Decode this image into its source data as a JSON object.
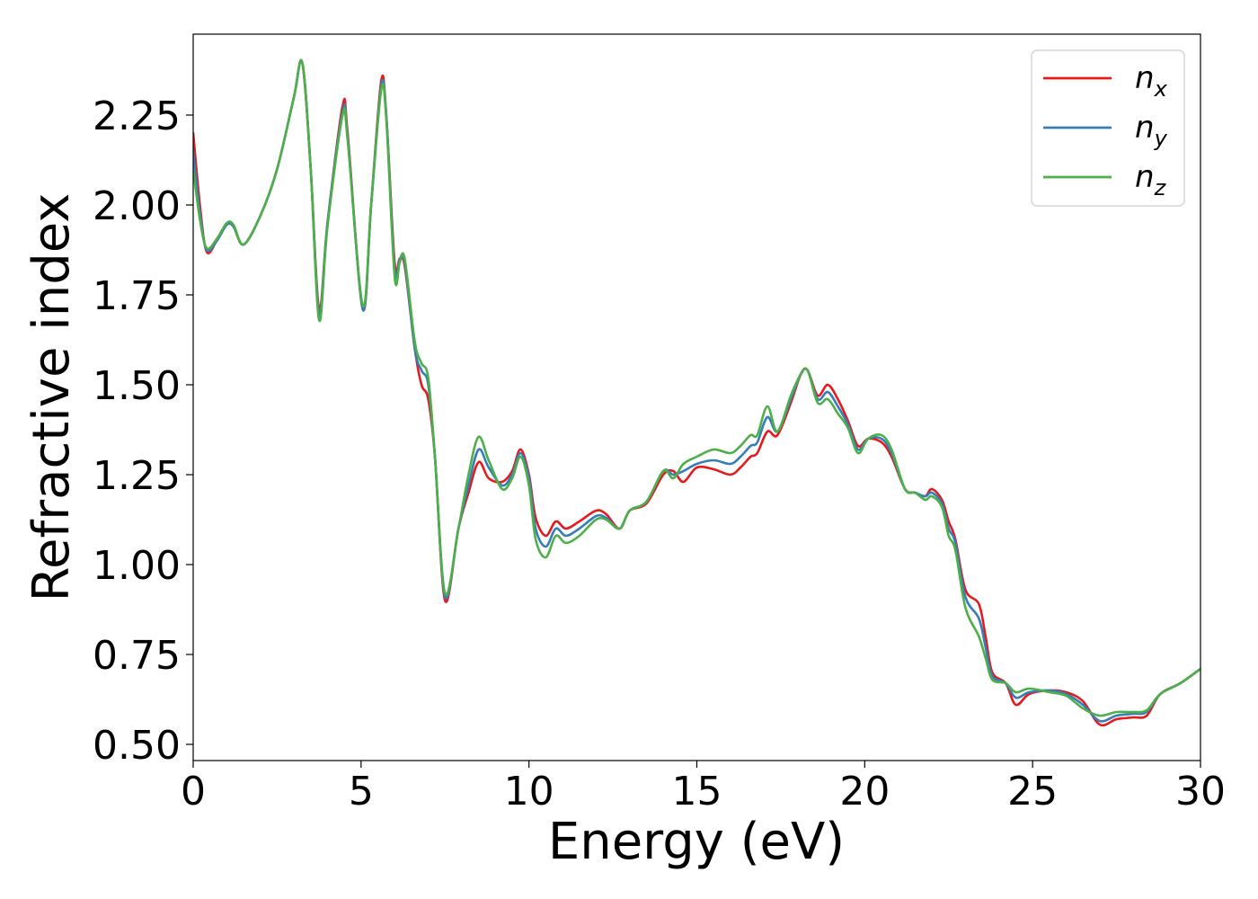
{
  "chart_data": {
    "type": "line",
    "xlabel": "Energy (eV)",
    "ylabel": "Refractive index",
    "xlim": [
      0,
      30
    ],
    "ylim": [
      0.455,
      2.475
    ],
    "xticks": [
      0,
      5,
      10,
      15,
      20,
      25,
      30
    ],
    "xtick_labels": [
      "0",
      "5",
      "10",
      "15",
      "20",
      "25",
      "30"
    ],
    "yticks": [
      0.5,
      0.75,
      1.0,
      1.25,
      1.5,
      1.75,
      2.0,
      2.25
    ],
    "ytick_labels": [
      "0.50",
      "0.75",
      "1.00",
      "1.25",
      "1.50",
      "1.75",
      "2.00",
      "2.25"
    ],
    "grid": false,
    "legend_position": "top-right",
    "series": [
      {
        "name_base": "n",
        "name_sub": "x",
        "color": "#e41a1c",
        "points": [
          [
            0,
            2.2
          ],
          [
            0.2,
            2.0
          ],
          [
            0.4,
            1.87
          ],
          [
            0.7,
            1.9
          ],
          [
            1.0,
            1.945
          ],
          [
            1.2,
            1.94
          ],
          [
            1.5,
            1.89
          ],
          [
            2.0,
            1.97
          ],
          [
            2.5,
            2.1
          ],
          [
            3.0,
            2.3
          ],
          [
            3.25,
            2.395
          ],
          [
            3.5,
            2.1
          ],
          [
            3.75,
            1.71
          ],
          [
            4.0,
            1.95
          ],
          [
            4.45,
            2.275
          ],
          [
            4.6,
            2.2
          ],
          [
            5.05,
            1.71
          ],
          [
            5.3,
            2.0
          ],
          [
            5.6,
            2.345
          ],
          [
            5.75,
            2.25
          ],
          [
            6.0,
            1.84
          ],
          [
            6.15,
            1.85
          ],
          [
            6.3,
            1.83
          ],
          [
            6.6,
            1.6
          ],
          [
            6.8,
            1.5
          ],
          [
            7.0,
            1.46
          ],
          [
            7.2,
            1.3
          ],
          [
            7.5,
            0.9
          ],
          [
            7.9,
            1.1
          ],
          [
            8.2,
            1.2
          ],
          [
            8.5,
            1.285
          ],
          [
            8.8,
            1.24
          ],
          [
            9.2,
            1.23
          ],
          [
            9.5,
            1.26
          ],
          [
            9.75,
            1.32
          ],
          [
            10.0,
            1.25
          ],
          [
            10.2,
            1.13
          ],
          [
            10.5,
            1.08
          ],
          [
            10.8,
            1.12
          ],
          [
            11.1,
            1.1
          ],
          [
            11.5,
            1.12
          ],
          [
            12.0,
            1.15
          ],
          [
            12.3,
            1.14
          ],
          [
            12.7,
            1.1
          ],
          [
            13.0,
            1.15
          ],
          [
            13.5,
            1.17
          ],
          [
            14.0,
            1.25
          ],
          [
            14.3,
            1.26
          ],
          [
            14.6,
            1.23
          ],
          [
            15.0,
            1.27
          ],
          [
            15.5,
            1.265
          ],
          [
            16.0,
            1.25
          ],
          [
            16.3,
            1.27
          ],
          [
            16.6,
            1.3
          ],
          [
            16.8,
            1.31
          ],
          [
            17.1,
            1.37
          ],
          [
            17.4,
            1.36
          ],
          [
            17.8,
            1.45
          ],
          [
            18.1,
            1.53
          ],
          [
            18.3,
            1.54
          ],
          [
            18.6,
            1.47
          ],
          [
            18.9,
            1.5
          ],
          [
            19.2,
            1.46
          ],
          [
            19.5,
            1.4
          ],
          [
            19.8,
            1.33
          ],
          [
            20.1,
            1.35
          ],
          [
            20.5,
            1.34
          ],
          [
            20.8,
            1.3
          ],
          [
            21.2,
            1.21
          ],
          [
            21.5,
            1.2
          ],
          [
            21.8,
            1.19
          ],
          [
            22.0,
            1.21
          ],
          [
            22.3,
            1.18
          ],
          [
            22.5,
            1.12
          ],
          [
            22.7,
            1.07
          ],
          [
            23.0,
            0.93
          ],
          [
            23.4,
            0.89
          ],
          [
            23.6,
            0.8
          ],
          [
            23.8,
            0.7
          ],
          [
            24.2,
            0.67
          ],
          [
            24.5,
            0.61
          ],
          [
            24.9,
            0.64
          ],
          [
            25.5,
            0.65
          ],
          [
            26.0,
            0.645
          ],
          [
            26.5,
            0.62
          ],
          [
            27.0,
            0.555
          ],
          [
            27.5,
            0.57
          ],
          [
            28.0,
            0.575
          ],
          [
            28.4,
            0.58
          ],
          [
            28.8,
            0.64
          ],
          [
            29.4,
            0.67
          ],
          [
            30.0,
            0.71
          ]
        ]
      },
      {
        "name_base": "n",
        "name_sub": "y",
        "color": "#377eb8",
        "points": [
          [
            0,
            2.15
          ],
          [
            0.2,
            1.98
          ],
          [
            0.4,
            1.875
          ],
          [
            0.7,
            1.9
          ],
          [
            1.0,
            1.945
          ],
          [
            1.2,
            1.94
          ],
          [
            1.5,
            1.89
          ],
          [
            2.0,
            1.97
          ],
          [
            2.5,
            2.1
          ],
          [
            3.0,
            2.3
          ],
          [
            3.25,
            2.395
          ],
          [
            3.5,
            2.1
          ],
          [
            3.75,
            1.695
          ],
          [
            4.0,
            1.95
          ],
          [
            4.45,
            2.26
          ],
          [
            4.6,
            2.19
          ],
          [
            5.05,
            1.71
          ],
          [
            5.3,
            2.0
          ],
          [
            5.6,
            2.33
          ],
          [
            5.75,
            2.25
          ],
          [
            6.0,
            1.82
          ],
          [
            6.15,
            1.85
          ],
          [
            6.3,
            1.84
          ],
          [
            6.6,
            1.6
          ],
          [
            6.8,
            1.54
          ],
          [
            7.0,
            1.5
          ],
          [
            7.2,
            1.3
          ],
          [
            7.5,
            0.91
          ],
          [
            7.9,
            1.1
          ],
          [
            8.2,
            1.22
          ],
          [
            8.5,
            1.32
          ],
          [
            8.8,
            1.27
          ],
          [
            9.2,
            1.22
          ],
          [
            9.5,
            1.25
          ],
          [
            9.75,
            1.31
          ],
          [
            10.0,
            1.24
          ],
          [
            10.2,
            1.1
          ],
          [
            10.5,
            1.05
          ],
          [
            10.8,
            1.1
          ],
          [
            11.1,
            1.08
          ],
          [
            11.5,
            1.1
          ],
          [
            12.0,
            1.135
          ],
          [
            12.3,
            1.13
          ],
          [
            12.7,
            1.1
          ],
          [
            13.0,
            1.15
          ],
          [
            13.5,
            1.175
          ],
          [
            14.0,
            1.26
          ],
          [
            14.3,
            1.25
          ],
          [
            14.6,
            1.26
          ],
          [
            15.0,
            1.28
          ],
          [
            15.5,
            1.29
          ],
          [
            16.0,
            1.28
          ],
          [
            16.3,
            1.3
          ],
          [
            16.6,
            1.33
          ],
          [
            16.8,
            1.34
          ],
          [
            17.1,
            1.41
          ],
          [
            17.4,
            1.37
          ],
          [
            17.8,
            1.46
          ],
          [
            18.1,
            1.53
          ],
          [
            18.3,
            1.54
          ],
          [
            18.6,
            1.46
          ],
          [
            18.9,
            1.48
          ],
          [
            19.2,
            1.44
          ],
          [
            19.5,
            1.39
          ],
          [
            19.8,
            1.32
          ],
          [
            20.1,
            1.35
          ],
          [
            20.5,
            1.35
          ],
          [
            20.8,
            1.31
          ],
          [
            21.2,
            1.21
          ],
          [
            21.5,
            1.2
          ],
          [
            21.8,
            1.19
          ],
          [
            22.0,
            1.2
          ],
          [
            22.3,
            1.17
          ],
          [
            22.5,
            1.1
          ],
          [
            22.7,
            1.06
          ],
          [
            23.0,
            0.91
          ],
          [
            23.4,
            0.85
          ],
          [
            23.6,
            0.77
          ],
          [
            23.8,
            0.69
          ],
          [
            24.2,
            0.67
          ],
          [
            24.5,
            0.63
          ],
          [
            24.9,
            0.645
          ],
          [
            25.5,
            0.65
          ],
          [
            26.0,
            0.64
          ],
          [
            26.5,
            0.61
          ],
          [
            27.0,
            0.565
          ],
          [
            27.5,
            0.58
          ],
          [
            28.0,
            0.585
          ],
          [
            28.4,
            0.59
          ],
          [
            28.8,
            0.64
          ],
          [
            29.4,
            0.67
          ],
          [
            30.0,
            0.71
          ]
        ]
      },
      {
        "name_base": "n",
        "name_sub": "z",
        "color": "#4daf4a",
        "points": [
          [
            0,
            2.1
          ],
          [
            0.2,
            1.96
          ],
          [
            0.4,
            1.88
          ],
          [
            0.7,
            1.905
          ],
          [
            1.0,
            1.95
          ],
          [
            1.2,
            1.945
          ],
          [
            1.5,
            1.89
          ],
          [
            2.0,
            1.97
          ],
          [
            2.5,
            2.1
          ],
          [
            3.0,
            2.3
          ],
          [
            3.25,
            2.395
          ],
          [
            3.5,
            2.1
          ],
          [
            3.75,
            1.68
          ],
          [
            4.0,
            1.94
          ],
          [
            4.45,
            2.25
          ],
          [
            4.6,
            2.18
          ],
          [
            5.05,
            1.72
          ],
          [
            5.3,
            2.0
          ],
          [
            5.6,
            2.32
          ],
          [
            5.75,
            2.24
          ],
          [
            6.0,
            1.8
          ],
          [
            6.15,
            1.84
          ],
          [
            6.3,
            1.85
          ],
          [
            6.6,
            1.62
          ],
          [
            6.8,
            1.56
          ],
          [
            7.0,
            1.52
          ],
          [
            7.2,
            1.3
          ],
          [
            7.5,
            0.92
          ],
          [
            7.9,
            1.1
          ],
          [
            8.2,
            1.25
          ],
          [
            8.5,
            1.355
          ],
          [
            8.8,
            1.29
          ],
          [
            9.2,
            1.21
          ],
          [
            9.5,
            1.24
          ],
          [
            9.75,
            1.3
          ],
          [
            10.0,
            1.22
          ],
          [
            10.2,
            1.07
          ],
          [
            10.5,
            1.02
          ],
          [
            10.8,
            1.08
          ],
          [
            11.1,
            1.06
          ],
          [
            11.5,
            1.08
          ],
          [
            12.0,
            1.125
          ],
          [
            12.3,
            1.125
          ],
          [
            12.7,
            1.1
          ],
          [
            13.0,
            1.15
          ],
          [
            13.5,
            1.175
          ],
          [
            14.0,
            1.26
          ],
          [
            14.3,
            1.24
          ],
          [
            14.6,
            1.28
          ],
          [
            15.0,
            1.3
          ],
          [
            15.5,
            1.32
          ],
          [
            16.0,
            1.31
          ],
          [
            16.3,
            1.33
          ],
          [
            16.6,
            1.36
          ],
          [
            16.8,
            1.36
          ],
          [
            17.1,
            1.44
          ],
          [
            17.4,
            1.37
          ],
          [
            17.8,
            1.47
          ],
          [
            18.1,
            1.53
          ],
          [
            18.3,
            1.54
          ],
          [
            18.6,
            1.45
          ],
          [
            18.9,
            1.46
          ],
          [
            19.2,
            1.42
          ],
          [
            19.5,
            1.38
          ],
          [
            19.8,
            1.31
          ],
          [
            20.1,
            1.35
          ],
          [
            20.5,
            1.36
          ],
          [
            20.8,
            1.32
          ],
          [
            21.2,
            1.21
          ],
          [
            21.5,
            1.2
          ],
          [
            21.8,
            1.18
          ],
          [
            22.0,
            1.19
          ],
          [
            22.3,
            1.16
          ],
          [
            22.5,
            1.08
          ],
          [
            22.7,
            1.04
          ],
          [
            23.0,
            0.88
          ],
          [
            23.4,
            0.8
          ],
          [
            23.6,
            0.74
          ],
          [
            23.8,
            0.68
          ],
          [
            24.2,
            0.67
          ],
          [
            24.5,
            0.645
          ],
          [
            24.9,
            0.655
          ],
          [
            25.5,
            0.645
          ],
          [
            26.0,
            0.635
          ],
          [
            26.5,
            0.6
          ],
          [
            27.0,
            0.58
          ],
          [
            27.5,
            0.59
          ],
          [
            28.0,
            0.59
          ],
          [
            28.4,
            0.595
          ],
          [
            28.8,
            0.64
          ],
          [
            29.4,
            0.67
          ],
          [
            30.0,
            0.71
          ]
        ]
      }
    ]
  }
}
